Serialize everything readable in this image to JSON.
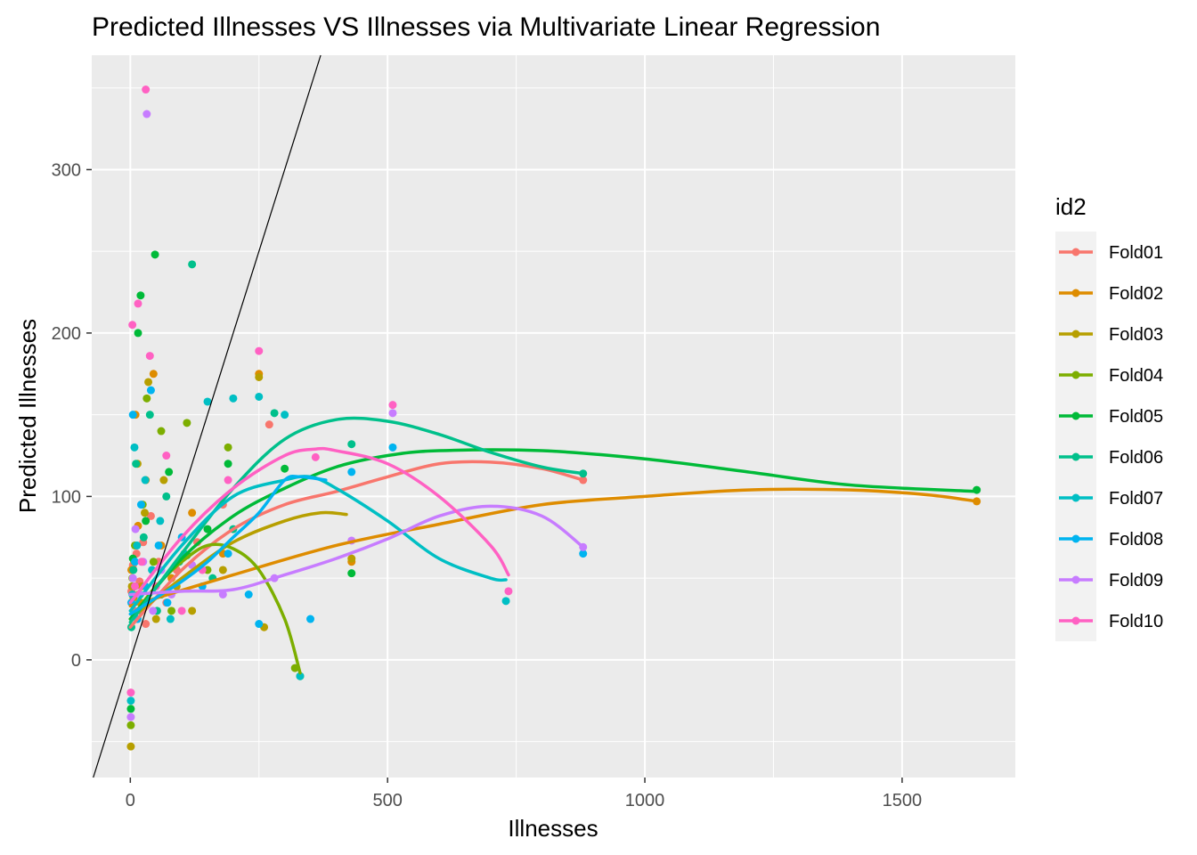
{
  "chart_data": {
    "type": "scatter",
    "title": "Predicted Illnesses VS Illnesses via Multivariate Linear Regression",
    "xlabel": "Illnesses",
    "ylabel": "Predicted Illnesses",
    "xlim": [
      -75,
      1720
    ],
    "ylim": [
      -72,
      370
    ],
    "x_ticks": [
      0,
      500,
      1000,
      1500
    ],
    "x_tick_labels": [
      "0",
      "500",
      "1000",
      "1500"
    ],
    "y_ticks": [
      0,
      100,
      200,
      300
    ],
    "y_tick_labels": [
      "0",
      "100",
      "200",
      "300"
    ],
    "grid": true,
    "background": "#ebebeb",
    "reference_line": {
      "slope": 1,
      "intercept": 0,
      "color": "#000000"
    },
    "legend": {
      "title": "id2",
      "position": "right"
    },
    "series": [
      {
        "name": "Fold01",
        "color": "#F8766D",
        "points": [
          [
            2,
            42
          ],
          [
            5,
            58
          ],
          [
            8,
            30
          ],
          [
            12,
            65
          ],
          [
            18,
            48
          ],
          [
            25,
            72
          ],
          [
            30,
            22
          ],
          [
            40,
            88
          ],
          [
            55,
            60
          ],
          [
            70,
            35
          ],
          [
            90,
            55
          ],
          [
            130,
            72
          ],
          [
            180,
            95
          ],
          [
            270,
            144
          ],
          [
            880,
            110
          ]
        ],
        "smooth": [
          [
            0,
            20
          ],
          [
            100,
            55
          ],
          [
            200,
            80
          ],
          [
            300,
            95
          ],
          [
            400,
            103
          ],
          [
            500,
            112
          ],
          [
            600,
            120
          ],
          [
            700,
            121
          ],
          [
            800,
            117
          ],
          [
            880,
            110
          ]
        ]
      },
      {
        "name": "Fold02",
        "color": "#DE8C00",
        "points": [
          [
            2,
            55
          ],
          [
            6,
            38
          ],
          [
            10,
            150
          ],
          [
            15,
            82
          ],
          [
            22,
            45
          ],
          [
            30,
            110
          ],
          [
            45,
            175
          ],
          [
            60,
            70
          ],
          [
            80,
            50
          ],
          [
            120,
            90
          ],
          [
            180,
            65
          ],
          [
            250,
            175
          ],
          [
            430,
            60
          ],
          [
            1645,
            97
          ]
        ],
        "smooth": [
          [
            0,
            33
          ],
          [
            200,
            52
          ],
          [
            400,
            70
          ],
          [
            600,
            83
          ],
          [
            800,
            95
          ],
          [
            1000,
            100
          ],
          [
            1200,
            104
          ],
          [
            1400,
            104
          ],
          [
            1550,
            101
          ],
          [
            1645,
            97
          ]
        ]
      },
      {
        "name": "Fold03",
        "color": "#B79F00",
        "points": [
          [
            1,
            -53
          ],
          [
            3,
            45
          ],
          [
            8,
            60
          ],
          [
            14,
            120
          ],
          [
            20,
            35
          ],
          [
            28,
            90
          ],
          [
            35,
            170
          ],
          [
            50,
            25
          ],
          [
            65,
            110
          ],
          [
            90,
            45
          ],
          [
            120,
            30
          ],
          [
            180,
            55
          ],
          [
            250,
            173
          ],
          [
            260,
            20
          ],
          [
            430,
            62
          ]
        ],
        "smooth": [
          [
            0,
            25
          ],
          [
            100,
            50
          ],
          [
            200,
            72
          ],
          [
            300,
            85
          ],
          [
            370,
            90
          ],
          [
            420,
            89
          ]
        ]
      },
      {
        "name": "Fold04",
        "color": "#7CAE00",
        "points": [
          [
            1,
            -40
          ],
          [
            4,
            50
          ],
          [
            9,
            70
          ],
          [
            16,
            40
          ],
          [
            24,
            95
          ],
          [
            32,
            160
          ],
          [
            45,
            60
          ],
          [
            60,
            140
          ],
          [
            80,
            30
          ],
          [
            110,
            145
          ],
          [
            150,
            55
          ],
          [
            190,
            130
          ],
          [
            320,
            -5
          ],
          [
            330,
            -10
          ]
        ],
        "smooth": [
          [
            0,
            25
          ],
          [
            50,
            45
          ],
          [
            100,
            60
          ],
          [
            150,
            70
          ],
          [
            200,
            68
          ],
          [
            250,
            55
          ],
          [
            300,
            25
          ],
          [
            330,
            -8
          ]
        ]
      },
      {
        "name": "Fold05",
        "color": "#00BA38",
        "points": [
          [
            1,
            -30
          ],
          [
            5,
            62
          ],
          [
            9,
            45
          ],
          [
            15,
            200
          ],
          [
            20,
            223
          ],
          [
            30,
            85
          ],
          [
            48,
            248
          ],
          [
            60,
            40
          ],
          [
            75,
            115
          ],
          [
            110,
            64
          ],
          [
            150,
            80
          ],
          [
            190,
            120
          ],
          [
            300,
            117
          ],
          [
            430,
            53
          ],
          [
            1645,
            104
          ]
        ],
        "smooth": [
          [
            0,
            25
          ],
          [
            100,
            62
          ],
          [
            200,
            88
          ],
          [
            300,
            105
          ],
          [
            400,
            118
          ],
          [
            500,
            125
          ],
          [
            600,
            128
          ],
          [
            800,
            128
          ],
          [
            1000,
            123
          ],
          [
            1200,
            115
          ],
          [
            1400,
            107
          ],
          [
            1645,
            103
          ]
        ]
      },
      {
        "name": "Fold06",
        "color": "#00C08B",
        "points": [
          [
            2,
            20
          ],
          [
            6,
            55
          ],
          [
            11,
            120
          ],
          [
            19,
            40
          ],
          [
            26,
            75
          ],
          [
            38,
            150
          ],
          [
            52,
            30
          ],
          [
            70,
            100
          ],
          [
            95,
            60
          ],
          [
            120,
            242
          ],
          [
            160,
            50
          ],
          [
            200,
            80
          ],
          [
            280,
            151
          ],
          [
            430,
            132
          ],
          [
            880,
            114
          ]
        ],
        "smooth": [
          [
            0,
            23
          ],
          [
            100,
            65
          ],
          [
            200,
            105
          ],
          [
            300,
            135
          ],
          [
            400,
            147
          ],
          [
            500,
            146
          ],
          [
            600,
            138
          ],
          [
            700,
            127
          ],
          [
            800,
            118
          ],
          [
            880,
            114
          ]
        ]
      },
      {
        "name": "Fold07",
        "color": "#00BFC4",
        "points": [
          [
            1,
            -25
          ],
          [
            4,
            40
          ],
          [
            8,
            130
          ],
          [
            13,
            70
          ],
          [
            21,
            30
          ],
          [
            29,
            110
          ],
          [
            42,
            55
          ],
          [
            58,
            85
          ],
          [
            78,
            25
          ],
          [
            105,
            65
          ],
          [
            150,
            158
          ],
          [
            200,
            160
          ],
          [
            250,
            161
          ],
          [
            300,
            150
          ],
          [
            330,
            -10
          ],
          [
            730,
            36
          ]
        ],
        "smooth": [
          [
            0,
            30
          ],
          [
            100,
            70
          ],
          [
            200,
            100
          ],
          [
            300,
            110
          ],
          [
            350,
            112
          ],
          [
            400,
            105
          ],
          [
            500,
            85
          ],
          [
            600,
            62
          ],
          [
            700,
            50
          ],
          [
            730,
            49
          ]
        ]
      },
      {
        "name": "Fold08",
        "color": "#00B4F0",
        "points": [
          [
            2,
            35
          ],
          [
            5,
            150
          ],
          [
            9,
            60
          ],
          [
            14,
            25
          ],
          [
            21,
            95
          ],
          [
            29,
            45
          ],
          [
            40,
            165
          ],
          [
            55,
            70
          ],
          [
            72,
            35
          ],
          [
            100,
            75
          ],
          [
            140,
            45
          ],
          [
            190,
            65
          ],
          [
            230,
            40
          ],
          [
            250,
            22
          ],
          [
            350,
            25
          ],
          [
            430,
            115
          ],
          [
            510,
            130
          ],
          [
            880,
            65
          ]
        ],
        "smooth": [
          [
            0,
            28
          ],
          [
            50,
            38
          ],
          [
            100,
            48
          ],
          [
            150,
            60
          ],
          [
            200,
            75
          ],
          [
            250,
            90
          ],
          [
            300,
            110
          ],
          [
            330,
            112
          ],
          [
            380,
            110
          ]
        ]
      },
      {
        "name": "Fold09",
        "color": "#C77CFF",
        "points": [
          [
            1,
            -35
          ],
          [
            5,
            50
          ],
          [
            10,
            80
          ],
          [
            18,
            40
          ],
          [
            25,
            60
          ],
          [
            32,
            334
          ],
          [
            44,
            30
          ],
          [
            60,
            55
          ],
          [
            80,
            40
          ],
          [
            120,
            58
          ],
          [
            180,
            40
          ],
          [
            280,
            50
          ],
          [
            430,
            73
          ],
          [
            510,
            151
          ],
          [
            880,
            69
          ]
        ],
        "smooth": [
          [
            0,
            40
          ],
          [
            100,
            42
          ],
          [
            200,
            43
          ],
          [
            300,
            52
          ],
          [
            400,
            62
          ],
          [
            500,
            74
          ],
          [
            600,
            88
          ],
          [
            700,
            94
          ],
          [
            800,
            88
          ],
          [
            880,
            69
          ]
        ]
      },
      {
        "name": "Fold10",
        "color": "#FF61C3",
        "points": [
          [
            1,
            -20
          ],
          [
            4,
            205
          ],
          [
            9,
            45
          ],
          [
            15,
            218
          ],
          [
            22,
            60
          ],
          [
            30,
            349
          ],
          [
            38,
            186
          ],
          [
            50,
            45
          ],
          [
            70,
            125
          ],
          [
            100,
            30
          ],
          [
            140,
            55
          ],
          [
            190,
            110
          ],
          [
            250,
            189
          ],
          [
            360,
            124
          ],
          [
            510,
            156
          ],
          [
            735,
            42
          ]
        ],
        "smooth": [
          [
            0,
            35
          ],
          [
            100,
            75
          ],
          [
            200,
            105
          ],
          [
            300,
            125
          ],
          [
            360,
            129
          ],
          [
            400,
            128
          ],
          [
            500,
            120
          ],
          [
            600,
            100
          ],
          [
            700,
            70
          ],
          [
            735,
            52
          ]
        ]
      }
    ]
  }
}
